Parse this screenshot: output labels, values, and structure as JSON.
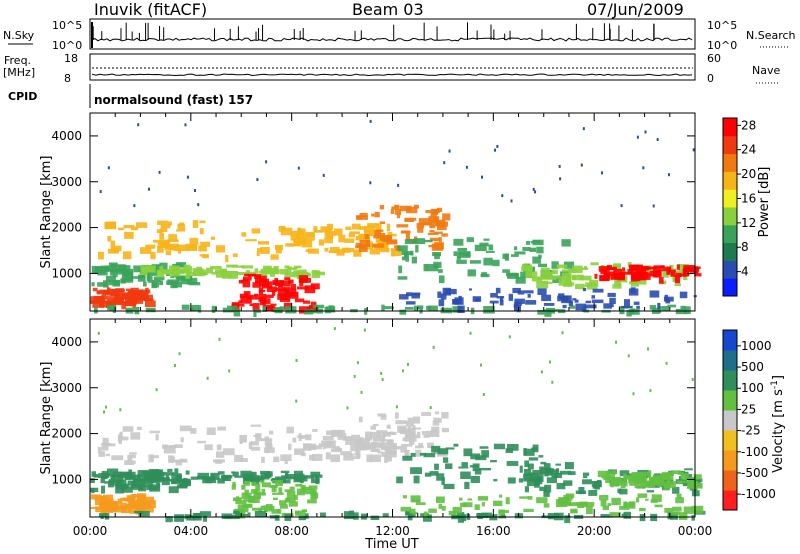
{
  "header": {
    "station": "Inuvik (fitACF)",
    "beam": "Beam 03",
    "date": "07/Jun/2009"
  },
  "status_panel": {
    "nsky_label": "N.Sky",
    "nsearch_label": "N.Search",
    "nsky_ticks": [
      "10^5",
      "10^0"
    ],
    "nsearch_ticks": [
      "10^5",
      "10^0"
    ],
    "freq_label": "Freq.",
    "freq_unit": "[MHz]",
    "freq_ticks": [
      "18",
      "8"
    ],
    "nave_label": "Nave",
    "nave_ticks": [
      "60",
      "0"
    ],
    "cpid_label": "CPID",
    "cpid_value": "normalsound (fast) 157"
  },
  "chart_data": [
    {
      "type": "heatmap",
      "title": "",
      "ylabel": "Slant Range [km]",
      "xlabel": "",
      "x_ticks": [
        "00:00",
        "04:00",
        "08:00",
        "12:00",
        "16:00",
        "20:00",
        "00:00"
      ],
      "y_ticks": [
        "1000",
        "2000",
        "3000",
        "4000"
      ],
      "ylim": [
        180,
        4500
      ],
      "xlim_hours": [
        0,
        24
      ],
      "colorbar": {
        "label": "Power [dB]",
        "ticks": [
          "4",
          "8",
          "12",
          "16",
          "20",
          "24",
          "28"
        ],
        "colors": [
          "#0a1eff",
          "#2a4cb0",
          "#1f7a50",
          "#3aa35a",
          "#8ad03c",
          "#f0f020",
          "#f7b419",
          "#f07a10",
          "#ef3a10",
          "#ff0000"
        ]
      }
    },
    {
      "type": "heatmap",
      "title": "",
      "ylabel": "Slant Range [km]",
      "xlabel": "Time UT",
      "x_ticks": [
        "00:00",
        "04:00",
        "08:00",
        "12:00",
        "16:00",
        "20:00",
        "00:00"
      ],
      "y_ticks": [
        "1000",
        "2000",
        "3000",
        "4000"
      ],
      "ylim": [
        180,
        4500
      ],
      "xlim_hours": [
        0,
        24
      ],
      "colorbar": {
        "label": "Velocity [m s",
        "label_sup": "-1",
        "label_end": "]",
        "ticks": [
          "1000",
          "500",
          "100",
          "25",
          "-25",
          "-100",
          "-500",
          "-1000"
        ],
        "colors": [
          "#1446d2",
          "#1e6e8c",
          "#2f8e5a",
          "#62c040",
          "#c8c8c8",
          "#f0c020",
          "#f59a1c",
          "#f0641a",
          "#ff1e1e"
        ]
      }
    }
  ]
}
